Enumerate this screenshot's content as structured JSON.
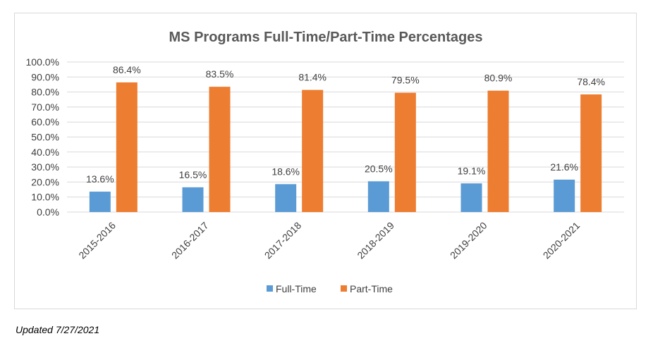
{
  "chart_data": {
    "type": "bar",
    "title": "MS Programs Full-Time/Part-Time Percentages",
    "categories": [
      "2015-2016",
      "2016-2017",
      "2017-2018",
      "2018-2019",
      "2019-2020",
      "2020-2021"
    ],
    "series": [
      {
        "name": "Full-Time",
        "color": "#5b9bd5",
        "values": [
          13.6,
          16.5,
          18.6,
          20.5,
          19.1,
          21.6
        ],
        "labels": [
          "13.6%",
          "16.5%",
          "18.6%",
          "20.5%",
          "19.1%",
          "21.6%"
        ]
      },
      {
        "name": "Part-Time",
        "color": "#ed7d31",
        "values": [
          86.4,
          83.5,
          81.4,
          79.5,
          80.9,
          78.4
        ],
        "labels": [
          "86.4%",
          "83.5%",
          "81.4%",
          "79.5%",
          "80.9%",
          "78.4%"
        ]
      }
    ],
    "ylim": [
      0,
      100
    ],
    "yticks": [
      "0.0%",
      "10.0%",
      "20.0%",
      "30.0%",
      "40.0%",
      "50.0%",
      "60.0%",
      "70.0%",
      "80.0%",
      "90.0%",
      "100.0%"
    ],
    "xlabel": "",
    "ylabel": "",
    "grid": true,
    "legend_position": "bottom"
  },
  "footer": {
    "note": "Updated 7/27/2021"
  }
}
